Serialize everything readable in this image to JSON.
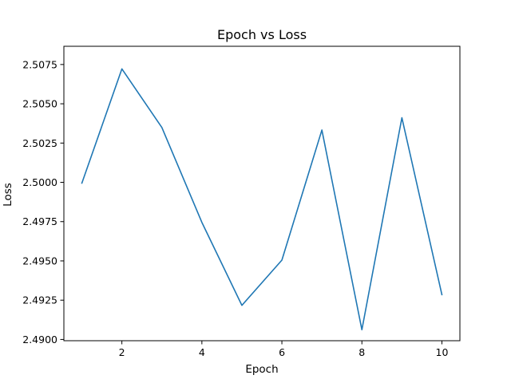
{
  "chart_data": {
    "type": "line",
    "title": "Epoch vs Loss",
    "xlabel": "Epoch",
    "ylabel": "Loss",
    "xlim": [
      0.55,
      10.45
    ],
    "ylim": [
      2.48992,
      2.50866
    ],
    "xticks": [
      2,
      4,
      6,
      8,
      10
    ],
    "yticks": [
      2.49,
      2.4925,
      2.495,
      2.4975,
      2.5,
      2.5025,
      2.505,
      2.5075
    ],
    "xtick_labels": [
      "2",
      "4",
      "6",
      "8",
      "10"
    ],
    "ytick_labels": [
      "2.4900",
      "2.4925",
      "2.4950",
      "2.4975",
      "2.5000",
      "2.5025",
      "2.5050",
      "2.5075"
    ],
    "grid": false,
    "series": [
      {
        "color": "#1f77b4",
        "x": [
          1,
          2,
          3,
          4,
          5,
          6,
          7,
          8,
          9,
          10
        ],
        "y": [
          2.49995,
          2.50722,
          2.50349,
          2.49745,
          2.49217,
          2.49505,
          2.50333,
          2.49062,
          2.50411,
          2.49285
        ]
      }
    ]
  }
}
